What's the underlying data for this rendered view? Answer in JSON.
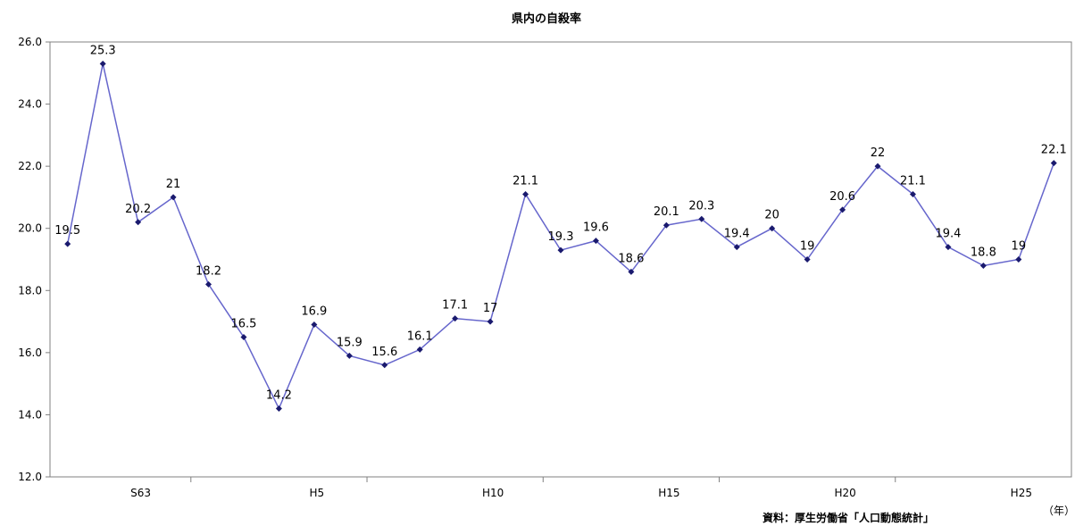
{
  "chart_data": {
    "type": "line",
    "title": "県内の自殺率",
    "x_unit_label": "（年）",
    "source": "資料：厚生労働省「人口動態統計」",
    "ylim": [
      12.0,
      26.0
    ],
    "y_ticks": [
      "12.0",
      "14.0",
      "16.0",
      "18.0",
      "20.0",
      "22.0",
      "24.0",
      "26.0"
    ],
    "x_tick_labels": [
      "S63",
      "H5",
      "H10",
      "H15",
      "H20",
      "H25"
    ],
    "grid": false,
    "series": [
      {
        "values": [
          19.5,
          25.3,
          20.2,
          21,
          18.2,
          16.5,
          14.2,
          16.9,
          15.9,
          15.6,
          16.1,
          17.1,
          17,
          21.1,
          19.3,
          19.6,
          18.6,
          20.1,
          20.3,
          19.4,
          20,
          19,
          20.6,
          22,
          21.1,
          19.4,
          18.8,
          19,
          22.1
        ],
        "labels": [
          "19.5",
          "25.3",
          "20.2",
          "21",
          "18.2",
          "16.5",
          "14.2",
          "16.9",
          "15.9",
          "15.6",
          "16.1",
          "17.1",
          "17",
          "21.1",
          "19.3",
          "19.6",
          "18.6",
          "20.1",
          "20.3",
          "19.4",
          "20",
          "19",
          "20.6",
          "22",
          "21.1",
          "19.4",
          "18.8",
          "19",
          "22.1"
        ]
      }
    ],
    "colors": {
      "line": "#6666cc",
      "marker": "#1a1a6e",
      "axis": "#808080"
    }
  }
}
